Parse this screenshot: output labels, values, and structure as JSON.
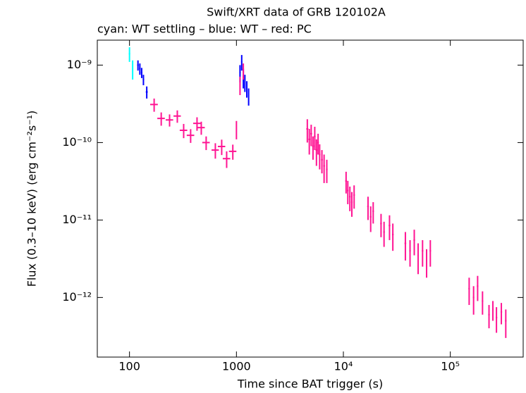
{
  "chart_data": {
    "type": "scatter",
    "title": "Swift/XRT data of GRB 120102A",
    "subtitle": "cyan: WT settling – blue: WT – red: PC",
    "x_label": "Time since BAT trigger (s)",
    "y_label": "Flux (0.3–10 keV) (erg cm⁻²s⁻¹)",
    "x_log": true,
    "y_log": true,
    "xlim": [
      50,
      480000
    ],
    "ylim": [
      1.7e-13,
      2.1e-09
    ],
    "xticks": [
      100,
      1000,
      {
        "value": 10000,
        "label": "10⁴"
      },
      {
        "value": 100000,
        "label": "10⁵"
      }
    ],
    "yticks": [
      {
        "value": 1e-12,
        "label": "10⁻¹²"
      },
      {
        "value": 1e-11,
        "label": "10⁻¹¹"
      },
      {
        "value": 1e-10,
        "label": "10⁻¹⁰"
      },
      {
        "value": 1e-09,
        "label": "10⁻⁹"
      }
    ],
    "series": [
      {
        "color": "#00ffff",
        "x": [
          100,
          107
        ],
        "x_err": [
          1.5,
          1.5
        ],
        "values": [
          1.4e-09,
          9e-10
        ],
        "y_err": [
          3e-10,
          2.5e-10
        ]
      },
      {
        "color": "#0000ff",
        "x": [
          120,
          125,
          130,
          135,
          145,
          1080,
          1120,
          1160,
          1200,
          1250,
          1300
        ],
        "x_err": [
          2,
          2,
          2,
          2,
          3,
          15,
          15,
          15,
          15,
          15,
          15
        ],
        "values": [
          1e-09,
          9e-10,
          8e-10,
          6.5e-10,
          4.5e-10,
          8e-10,
          1.1e-09,
          7e-10,
          6e-10,
          5e-10,
          4e-10
        ],
        "y_err": [
          1.5e-10,
          1.5e-10,
          1.2e-10,
          1e-10,
          8e-11,
          2e-10,
          2.5e-10,
          2e-10,
          1.5e-10,
          1.2e-10,
          1e-10
        ]
      },
      {
        "color": "#ff1493",
        "x": [
          170,
          198,
          237,
          280,
          321,
          373,
          428,
          469,
          521,
          635,
          728,
          810,
          925,
          1000,
          1080,
          1160,
          4600,
          4800,
          5000,
          5200,
          5400,
          5600,
          5800,
          6000,
          6300,
          6600,
          7000,
          10600,
          11000,
          11500,
          12000,
          12600,
          17000,
          18000,
          19000,
          22500,
          24000,
          27000,
          29000,
          38000,
          42000,
          46000,
          50000,
          55000,
          60000,
          65000,
          150000,
          165000,
          180000,
          200000,
          230000,
          250000,
          270000,
          300000,
          330000
        ],
        "x_err": [
          14,
          16,
          19,
          22,
          26,
          30,
          34,
          37,
          42,
          50,
          58,
          65,
          74,
          10,
          12,
          14,
          100,
          100,
          100,
          100,
          100,
          100,
          100,
          100,
          120,
          120,
          120,
          200,
          200,
          200,
          200,
          200,
          300,
          300,
          300,
          400,
          400,
          500,
          500,
          700,
          700,
          800,
          800,
          900,
          900,
          1000,
          2500,
          2500,
          3000,
          3000,
          4000,
          4000,
          4500,
          5000,
          5500
        ],
        "values": [
          3.1e-10,
          2.05e-10,
          1.96e-10,
          2.2e-10,
          1.44e-10,
          1.24e-10,
          1.77e-10,
          1.56e-10,
          1e-10,
          8e-11,
          8.9e-11,
          6.2e-11,
          7.7e-11,
          1.5e-10,
          5.6e-10,
          8.5e-10,
          1.5e-10,
          1.1e-10,
          1.3e-10,
          9e-11,
          1.2e-10,
          8e-11,
          1e-10,
          7e-11,
          6e-11,
          5e-11,
          4.5e-11,
          3.2e-11,
          2.4e-11,
          2e-11,
          1.7e-11,
          2.1e-11,
          1.5e-11,
          1.1e-11,
          1.3e-11,
          9e-12,
          7e-12,
          8.5e-12,
          6.5e-12,
          5e-12,
          4e-12,
          5.5e-12,
          3.5e-12,
          4e-12,
          3e-12,
          4e-12,
          1.3e-12,
          1e-12,
          1.4e-12,
          9e-13,
          6e-13,
          7e-13,
          5.5e-13,
          6.5e-13,
          5e-13
        ],
        "y_err": [
          6e-11,
          4e-11,
          3.5e-11,
          4e-11,
          3e-11,
          2.5e-11,
          3.5e-11,
          3e-11,
          2e-11,
          1.8e-11,
          2e-11,
          1.5e-11,
          1.7e-11,
          4e-11,
          1.5e-10,
          2e-10,
          5e-11,
          4e-11,
          4e-11,
          3e-11,
          4e-11,
          3e-11,
          3e-11,
          2.5e-11,
          2e-11,
          2e-11,
          1.5e-11,
          1e-11,
          8e-12,
          7e-12,
          6e-12,
          7e-12,
          5e-12,
          4e-12,
          4e-12,
          3e-12,
          2.5e-12,
          3e-12,
          2.5e-12,
          2e-12,
          1.5e-12,
          2e-12,
          1.5e-12,
          1.5e-12,
          1.2e-12,
          1.5e-12,
          5e-13,
          4e-13,
          5e-13,
          3e-13,
          2e-13,
          2e-13,
          2e-13,
          2e-13,
          2e-13
        ]
      }
    ]
  }
}
